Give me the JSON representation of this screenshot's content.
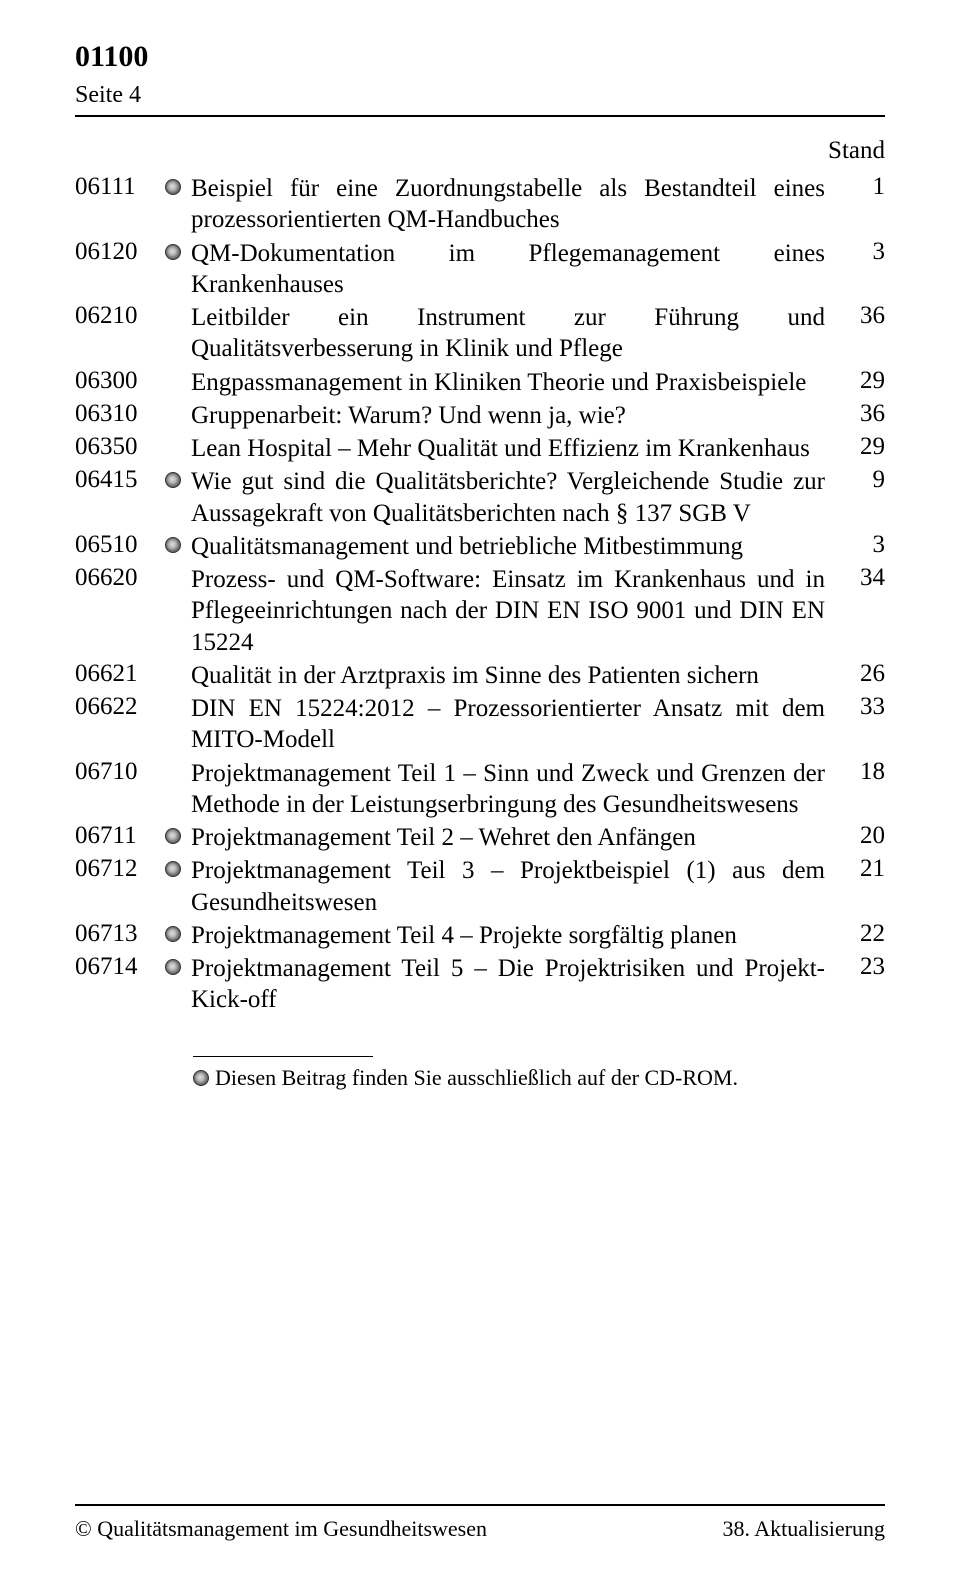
{
  "header": {
    "section_number": "01100",
    "page_label": "Seite 4",
    "stand_label": "Stand"
  },
  "entries": [
    {
      "code": "06111",
      "icon": true,
      "desc": "Beispiel für eine Zuordnungstabelle als Bestandteil eines prozessorientierten QM-Handbuches",
      "stand": "1"
    },
    {
      "code": "06120",
      "icon": true,
      "desc": "QM-Dokumentation im Pflegemanagement eines Krankenhauses",
      "stand": "3"
    },
    {
      "code": "06210",
      "icon": false,
      "desc": "Leitbilder ein Instrument zur Führung und Qualitätsverbesserung in Klinik und Pflege",
      "stand": "36"
    },
    {
      "code": "06300",
      "icon": false,
      "desc": "Engpassmanagement in Kliniken Theorie und Praxisbeispiele",
      "stand": "29"
    },
    {
      "code": "06310",
      "icon": false,
      "desc": "Gruppenarbeit: Warum? Und wenn ja, wie?",
      "stand": "36"
    },
    {
      "code": "06350",
      "icon": false,
      "desc": "Lean Hospital – Mehr Qualität und Effizienz im Krankenhaus",
      "stand": "29"
    },
    {
      "code": "06415",
      "icon": true,
      "desc": "Wie gut sind die Qualitätsberichte? Vergleichende Studie zur Aussagekraft von Qualitätsberichten nach § 137 SGB V",
      "stand": "9"
    },
    {
      "code": "06510",
      "icon": true,
      "desc": "Qualitätsmanagement und betriebliche Mitbestimmung",
      "stand": "3"
    },
    {
      "code": "06620",
      "icon": false,
      "desc": "Prozess- und QM-Software: Einsatz im Krankenhaus und in Pflegeeinrichtungen nach der DIN EN ISO 9001 und DIN EN 15224",
      "stand": "34"
    },
    {
      "code": "06621",
      "icon": false,
      "desc": "Qualität in der Arztpraxis im Sinne des Patienten sichern",
      "stand": "26"
    },
    {
      "code": "06622",
      "icon": false,
      "desc": "DIN EN 15224:2012 – Prozessorientierter Ansatz mit dem MITO-Modell",
      "stand": "33"
    },
    {
      "code": "06710",
      "icon": false,
      "desc": "Projektmanagement Teil 1 – Sinn und Zweck und Grenzen der Methode in der Leistungserbringung des Gesundheitswesens",
      "stand": "18"
    },
    {
      "code": "06711",
      "icon": true,
      "desc": "Projektmanagement Teil 2 – Wehret den Anfängen",
      "stand": "20"
    },
    {
      "code": "06712",
      "icon": true,
      "desc": "Projektmanagement Teil 3 – Projektbeispiel (1) aus dem Gesundheitswesen",
      "stand": "21"
    },
    {
      "code": "06713",
      "icon": true,
      "desc": "Projektmanagement Teil 4 – Projekte sorgfältig planen",
      "stand": "22"
    },
    {
      "code": "06714",
      "icon": true,
      "desc": "Projektmanagement Teil 5 – Die Projektrisiken und Projekt-Kick-off",
      "stand": "23"
    }
  ],
  "footnote": {
    "text": "Diesen Beitrag finden Sie ausschließlich auf der CD-ROM."
  },
  "footer": {
    "left": "© Qualitätsmanagement im Gesundheitswesen",
    "right": "38. Aktualisierung"
  }
}
